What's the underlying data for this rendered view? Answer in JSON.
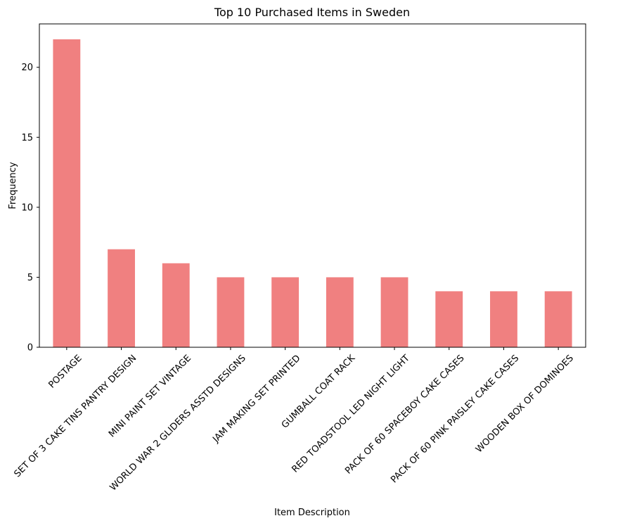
{
  "chart_data": {
    "type": "bar",
    "title": "Top 10 Purchased Items in Sweden",
    "xlabel": "Item Description",
    "ylabel": "Frequency",
    "categories": [
      "POSTAGE",
      "SET OF 3 CAKE TINS PANTRY DESIGN",
      "MINI PAINT SET VINTAGE",
      "WORLD WAR 2 GLIDERS ASSTD DESIGNS",
      "JAM MAKING SET PRINTED",
      "GUMBALL COAT RACK",
      "RED TOADSTOOL LED NIGHT LIGHT",
      "PACK OF 60 SPACEBOY CAKE CASES",
      "PACK OF 60 PINK PAISLEY CAKE CASES",
      "WOODEN BOX OF DOMINOES"
    ],
    "values": [
      22,
      7,
      6,
      5,
      5,
      5,
      5,
      4,
      4,
      4
    ],
    "ylim": [
      0,
      23.1
    ],
    "yticks": [
      0,
      5,
      10,
      15,
      20
    ],
    "bar_color": "#f08080",
    "grid": false,
    "legend": "none"
  }
}
